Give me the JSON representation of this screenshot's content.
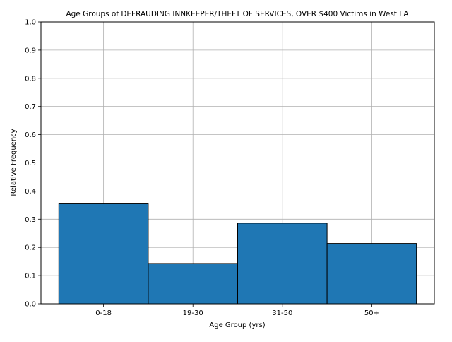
{
  "chart_data": {
    "type": "bar",
    "title": "Age Groups of DEFRAUDING INNKEEPER/THEFT OF SERVICES, OVER $400 Victims in West LA",
    "xlabel": "Age Group (yrs)",
    "ylabel": "Relative Frequency",
    "categories": [
      "0-18",
      "19-30",
      "31-50",
      "50+"
    ],
    "values": [
      0.357,
      0.143,
      0.286,
      0.214
    ],
    "ylim": [
      0,
      1.0
    ],
    "yticks": [
      "0.0",
      "0.1",
      "0.2",
      "0.3",
      "0.4",
      "0.5",
      "0.6",
      "0.7",
      "0.8",
      "0.9",
      "1.0"
    ],
    "grid": true,
    "bar_color": "#1f77b4",
    "edge_color": "#000000"
  }
}
